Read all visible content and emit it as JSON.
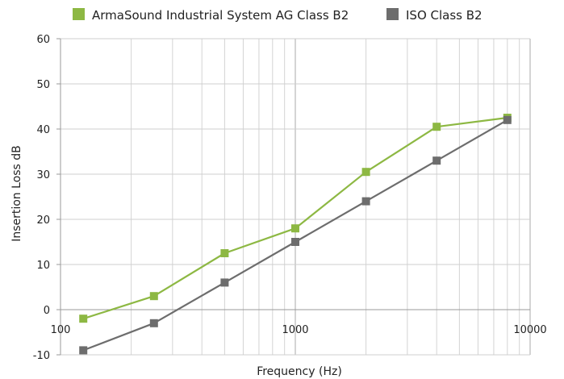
{
  "chart_data": {
    "type": "line",
    "xscale": "log",
    "xlabel": "Frequency (Hz)",
    "ylabel": "Insertion Loss dB",
    "xlim": [
      100,
      10000
    ],
    "ylim": [
      -10,
      60
    ],
    "yticks": [
      -10,
      0,
      10,
      20,
      30,
      40,
      50,
      60
    ],
    "xticks": [
      100,
      1000,
      10000
    ],
    "grid": true,
    "legend_position": "top",
    "x": [
      125,
      250,
      500,
      1000,
      2000,
      4000,
      8000
    ],
    "series": [
      {
        "name": "ArmaSound Industrial System AG Class B2",
        "color": "#8db843",
        "values": [
          -2,
          3,
          12.5,
          18,
          30.5,
          40.5,
          42.5
        ]
      },
      {
        "name": "ISO Class B2",
        "color": "#6d6d6d",
        "values": [
          -9,
          -3,
          6,
          15,
          24,
          33,
          42
        ]
      }
    ]
  }
}
